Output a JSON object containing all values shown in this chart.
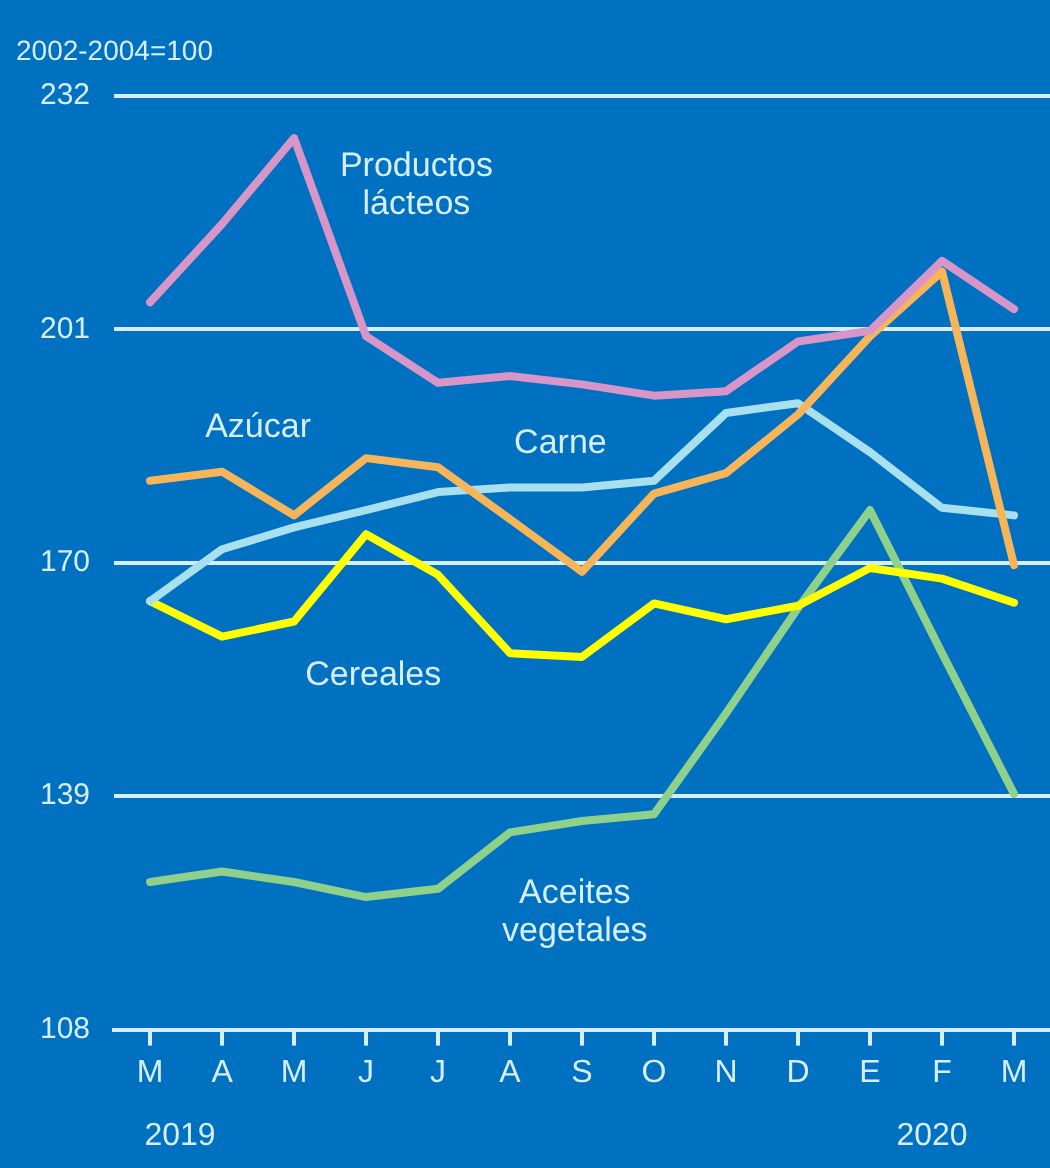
{
  "chart_data": {
    "type": "line",
    "categories": [
      "M",
      "A",
      "M",
      "J",
      "J",
      "A",
      "S",
      "O",
      "N",
      "D",
      "E",
      "F",
      "M"
    ],
    "series": [
      {
        "name": "Productos lácteos",
        "color": "#d896c8",
        "values": [
          204.6,
          215,
          226.4,
          200.1,
          193.9,
          194.8,
          193.7,
          192.2,
          192.8,
          199.4,
          200.8,
          210.1,
          203.7
        ]
      },
      {
        "name": "Azúcar",
        "color": "#f7b55a",
        "values": [
          180.9,
          182.1,
          176.3,
          183.9,
          182.7,
          175.8,
          168.8,
          179.2,
          181.9,
          189.7,
          200.1,
          208.7,
          169.7
        ]
      },
      {
        "name": "Carne",
        "color": "#a8e0ef",
        "values": [
          164.9,
          171.8,
          174.7,
          177,
          179.4,
          180,
          180,
          180.9,
          189.9,
          191.2,
          184.7,
          177.3,
          176.3
        ]
      },
      {
        "name": "Cereales",
        "color": "#ffff00",
        "values": [
          164.9,
          160.2,
          162.2,
          173.8,
          168.4,
          158,
          157.5,
          164.6,
          162.5,
          164.3,
          169.3,
          167.9,
          164.7
        ]
      },
      {
        "name": "Aceites vegetales",
        "color": "#8fd18a",
        "values": [
          127.6,
          129,
          127.6,
          125.6,
          126.7,
          134.2,
          135.7,
          136.6,
          150,
          164,
          177,
          158,
          139.3
        ]
      }
    ],
    "ylim": [
      108,
      232
    ],
    "yticks": [
      108,
      139,
      170,
      201,
      232
    ],
    "grid": "y",
    "legend": false,
    "marker": "none",
    "line_style": "solid",
    "annotations": [
      "2002-2004=100",
      "2019",
      "2020"
    ]
  }
}
